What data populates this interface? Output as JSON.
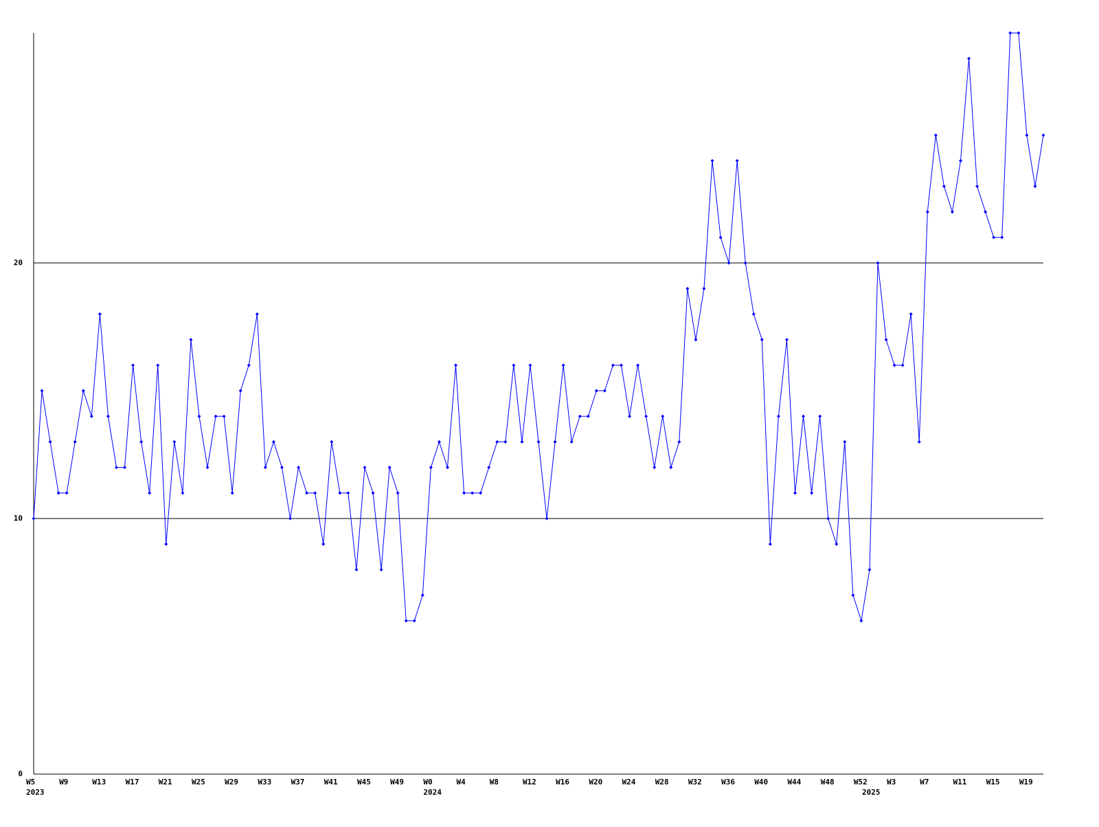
{
  "chart_data": {
    "type": "line",
    "categories": [
      "W5",
      null,
      null,
      null,
      "W9",
      null,
      null,
      null,
      "W13",
      null,
      null,
      null,
      "W17",
      null,
      null,
      null,
      "W21",
      null,
      null,
      null,
      "W25",
      null,
      null,
      null,
      "W29",
      null,
      null,
      null,
      "W33",
      null,
      null,
      null,
      "W37",
      null,
      null,
      null,
      "W41",
      null,
      null,
      null,
      "W45",
      null,
      null,
      null,
      "W49",
      null,
      null,
      null,
      "W0",
      null,
      null,
      null,
      "W4",
      null,
      null,
      null,
      "W8",
      null,
      null,
      null,
      "W12",
      null,
      null,
      null,
      "W16",
      null,
      null,
      null,
      "W20",
      null,
      null,
      null,
      "W24",
      null,
      null,
      null,
      "W28",
      null,
      null,
      null,
      "W32",
      null,
      null,
      null,
      "W36",
      null,
      null,
      null,
      "W40",
      null,
      null,
      null,
      "W44",
      null,
      null,
      null,
      "W48",
      null,
      null,
      null,
      "W52",
      null,
      null,
      null,
      "W3",
      null,
      null,
      null,
      "W7",
      null,
      null,
      null,
      "W11",
      null,
      null,
      null,
      "W15",
      null,
      null,
      null,
      "W19",
      null,
      null
    ],
    "year_labels": [
      "2023",
      "2024",
      "2025"
    ],
    "series": [
      {
        "color": "#0000ff",
        "values": [
          10,
          15,
          13,
          11,
          11,
          13,
          15,
          14,
          18,
          14,
          12,
          12,
          16,
          13,
          11,
          16,
          9,
          13,
          11,
          17,
          14,
          12,
          14,
          14,
          11,
          15,
          16,
          18,
          12,
          13,
          12,
          10,
          12,
          11,
          11,
          9,
          13,
          11,
          11,
          8,
          12,
          11,
          8,
          12,
          11,
          6,
          6,
          7,
          12,
          13,
          12,
          16,
          11,
          11,
          11,
          12,
          13,
          13,
          16,
          13,
          16,
          13,
          10,
          13,
          16,
          13,
          14,
          14,
          15,
          15,
          16,
          16,
          14,
          16,
          14,
          12,
          14,
          12,
          13,
          19,
          17,
          19,
          24,
          21,
          20,
          24,
          20,
          18,
          17,
          9,
          14,
          17,
          11,
          14,
          11,
          14,
          10,
          9,
          13,
          7,
          6,
          8,
          20,
          17,
          16,
          16,
          18,
          13,
          22,
          25,
          23,
          22,
          24,
          28,
          23,
          22,
          21,
          21,
          29,
          29,
          25,
          23,
          25
        ]
      }
    ],
    "ylim": [
      0,
      29
    ],
    "yticks": [
      0,
      10,
      20
    ],
    "grid": true
  }
}
